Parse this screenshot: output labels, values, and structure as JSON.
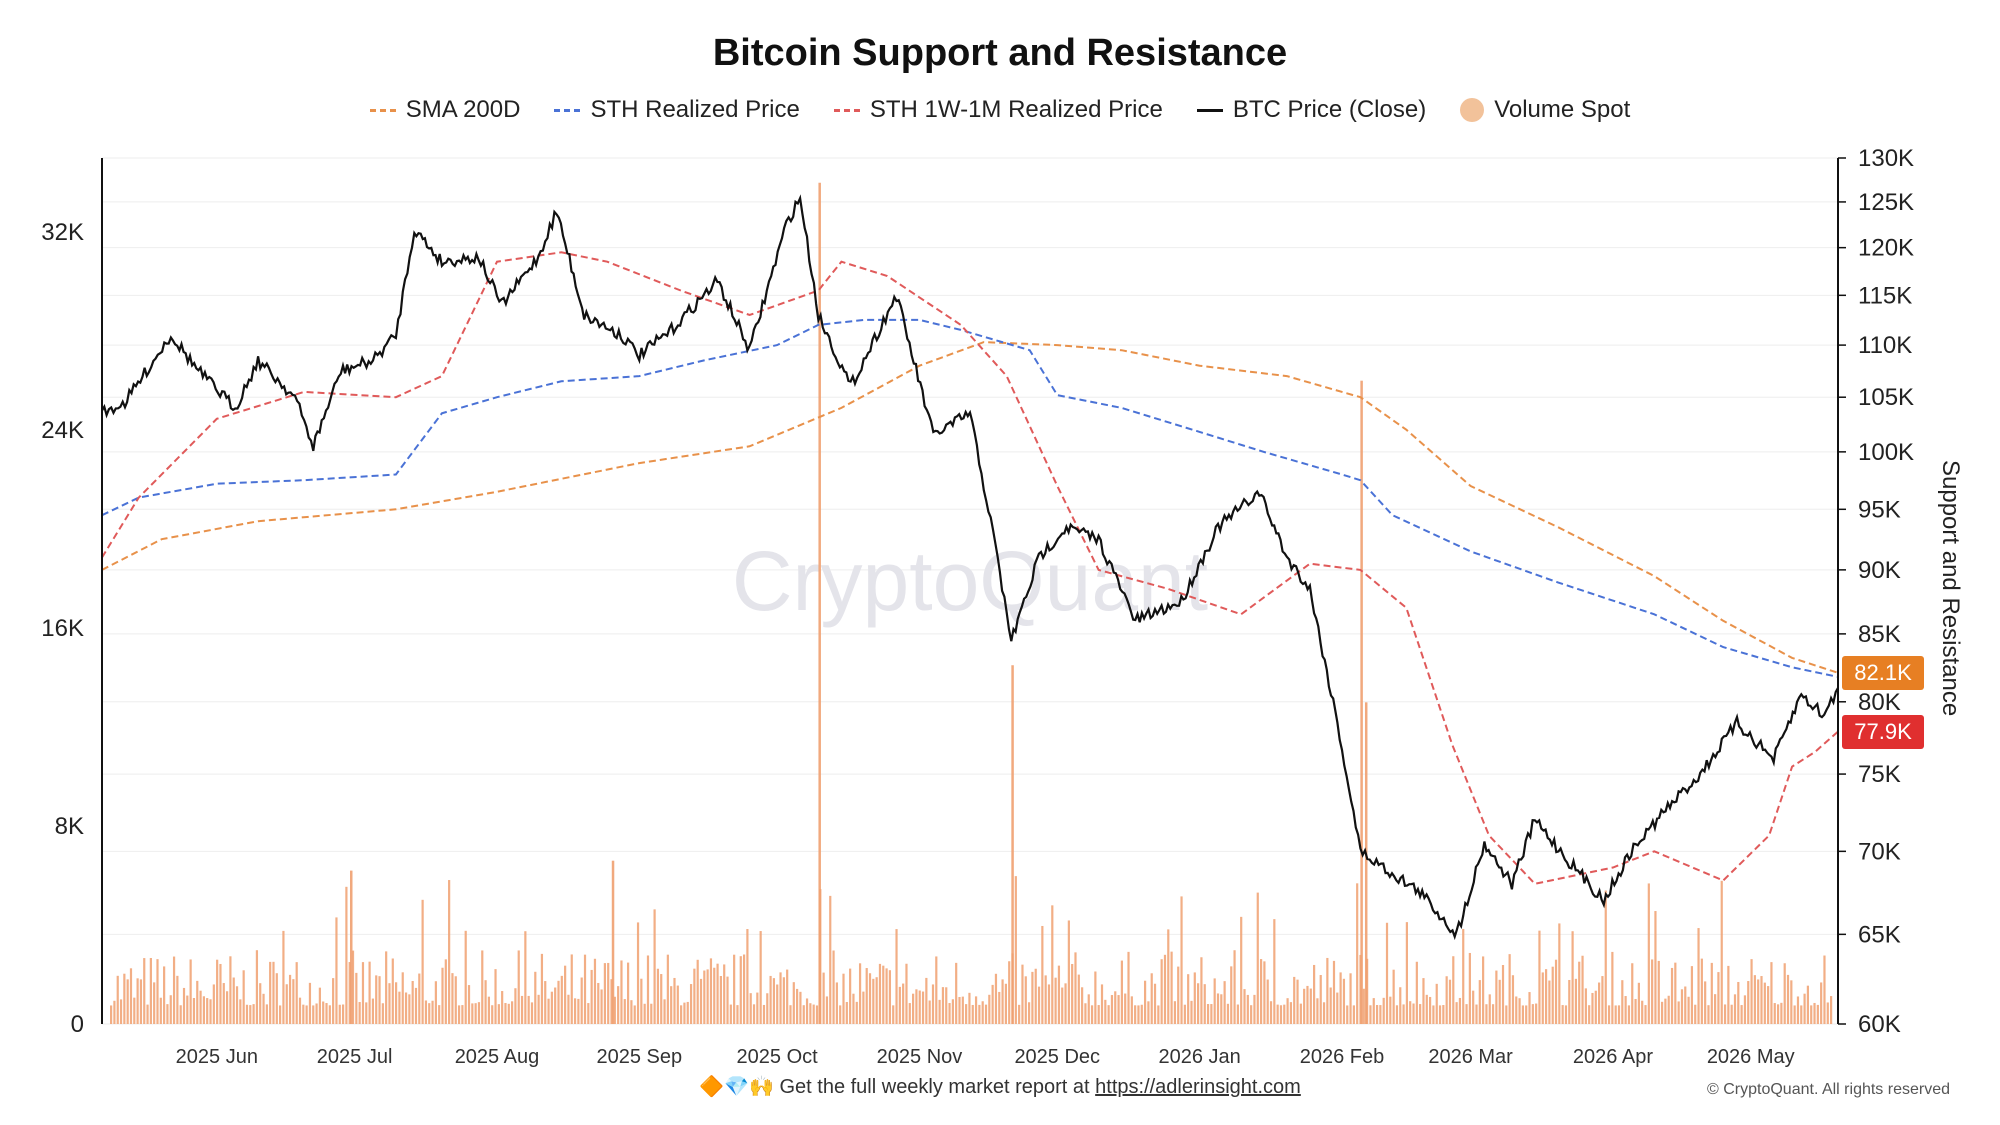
{
  "chart_data": {
    "type": "line",
    "title": "Bitcoin Support and Resistance",
    "left_axis": {
      "label": "",
      "range": [
        0,
        35000
      ],
      "ticks": [
        "0",
        "8K",
        "16K",
        "24K",
        "32K"
      ],
      "tick_values": [
        0,
        8000,
        16000,
        24000,
        32000
      ]
    },
    "right_axis": {
      "label": "Support and Resistance",
      "scale": "log",
      "range": [
        60000,
        130000
      ],
      "ticks": [
        "60K",
        "65K",
        "70K",
        "75K",
        "80K",
        "85K",
        "90K",
        "95K",
        "100K",
        "105K",
        "110K",
        "115K",
        "120K",
        "125K",
        "130K"
      ],
      "tick_values": [
        60000,
        65000,
        70000,
        75000,
        80000,
        85000,
        90000,
        95000,
        100000,
        105000,
        110000,
        115000,
        120000,
        125000,
        130000
      ]
    },
    "x_axis": {
      "range": [
        "2025-05-07",
        "2026-05-20"
      ],
      "ticks": [
        "2025 Jun",
        "2025 Jul",
        "2025 Aug",
        "2025 Sep",
        "2025 Oct",
        "2025 Nov",
        "2025 Dec",
        "2026 Jan",
        "2026 Feb",
        "2026 Mar",
        "2026 Apr",
        "2026 May"
      ],
      "tick_dates": [
        "2025-06-01",
        "2025-07-01",
        "2025-08-01",
        "2025-09-01",
        "2025-10-01",
        "2025-11-01",
        "2025-12-01",
        "2026-01-01",
        "2026-02-01",
        "2026-03-01",
        "2026-04-01",
        "2026-05-01"
      ]
    },
    "grid": true,
    "legend_position": "top-center",
    "series": [
      {
        "name": "SMA 200D",
        "axis": "right",
        "style": "dashed",
        "color": "#e8914a",
        "points": [
          [
            "2025-05-07",
            90000
          ],
          [
            "2025-05-20",
            92500
          ],
          [
            "2025-06-10",
            94000
          ],
          [
            "2025-07-10",
            95000
          ],
          [
            "2025-08-01",
            96500
          ],
          [
            "2025-09-01",
            99000
          ],
          [
            "2025-09-25",
            100500
          ],
          [
            "2025-10-15",
            104000
          ],
          [
            "2025-11-01",
            108000
          ],
          [
            "2025-11-15",
            110300
          ],
          [
            "2025-12-01",
            110000
          ],
          [
            "2025-12-15",
            109500
          ],
          [
            "2026-01-01",
            108000
          ],
          [
            "2026-01-20",
            107000
          ],
          [
            "2026-02-05",
            105000
          ],
          [
            "2026-02-15",
            102000
          ],
          [
            "2026-03-01",
            97000
          ],
          [
            "2026-03-20",
            93500
          ],
          [
            "2026-04-10",
            89500
          ],
          [
            "2026-04-25",
            86000
          ],
          [
            "2026-05-10",
            83200
          ],
          [
            "2026-05-20",
            82100
          ]
        ]
      },
      {
        "name": "STH Realized Price",
        "axis": "right",
        "style": "dashed",
        "color": "#4a72d6",
        "points": [
          [
            "2025-05-07",
            94500
          ],
          [
            "2025-05-15",
            96000
          ],
          [
            "2025-06-01",
            97200
          ],
          [
            "2025-06-20",
            97500
          ],
          [
            "2025-07-10",
            98000
          ],
          [
            "2025-07-20",
            103500
          ],
          [
            "2025-08-01",
            105000
          ],
          [
            "2025-08-15",
            106500
          ],
          [
            "2025-09-01",
            107000
          ],
          [
            "2025-09-15",
            108500
          ],
          [
            "2025-10-01",
            110000
          ],
          [
            "2025-10-10",
            112000
          ],
          [
            "2025-10-20",
            112500
          ],
          [
            "2025-11-01",
            112500
          ],
          [
            "2025-11-10",
            111500
          ],
          [
            "2025-11-25",
            109500
          ],
          [
            "2025-12-01",
            105200
          ],
          [
            "2025-12-15",
            104000
          ],
          [
            "2026-01-01",
            101800
          ],
          [
            "2026-01-15",
            100000
          ],
          [
            "2026-02-01",
            98000
          ],
          [
            "2026-02-05",
            97500
          ],
          [
            "2026-02-12",
            94500
          ],
          [
            "2026-03-01",
            91500
          ],
          [
            "2026-03-20",
            89000
          ],
          [
            "2026-04-10",
            86500
          ],
          [
            "2026-04-25",
            84000
          ],
          [
            "2026-05-10",
            82500
          ],
          [
            "2026-05-20",
            81800
          ]
        ]
      },
      {
        "name": "STH 1W-1M Realized Price",
        "axis": "right",
        "style": "dashed",
        "color": "#e05a5a",
        "points": [
          [
            "2025-05-07",
            91000
          ],
          [
            "2025-05-15",
            96000
          ],
          [
            "2025-06-01",
            103000
          ],
          [
            "2025-06-20",
            105500
          ],
          [
            "2025-07-10",
            105000
          ],
          [
            "2025-07-20",
            107000
          ],
          [
            "2025-08-01",
            118500
          ],
          [
            "2025-08-15",
            119500
          ],
          [
            "2025-08-25",
            118500
          ],
          [
            "2025-09-10",
            115500
          ],
          [
            "2025-09-25",
            113000
          ],
          [
            "2025-10-10",
            115500
          ],
          [
            "2025-10-15",
            118500
          ],
          [
            "2025-10-25",
            117000
          ],
          [
            "2025-11-10",
            112000
          ],
          [
            "2025-11-20",
            107000
          ],
          [
            "2025-12-01",
            97000
          ],
          [
            "2025-12-10",
            90000
          ],
          [
            "2025-12-25",
            88500
          ],
          [
            "2026-01-10",
            86500
          ],
          [
            "2026-01-25",
            90500
          ],
          [
            "2026-02-05",
            90000
          ],
          [
            "2026-02-15",
            87000
          ],
          [
            "2026-02-25",
            77000
          ],
          [
            "2026-03-05",
            71000
          ],
          [
            "2026-03-15",
            68000
          ],
          [
            "2026-04-01",
            69000
          ],
          [
            "2026-04-10",
            70000
          ],
          [
            "2026-04-25",
            68200
          ],
          [
            "2026-05-05",
            71000
          ],
          [
            "2026-05-10",
            75500
          ],
          [
            "2026-05-15",
            76500
          ],
          [
            "2026-05-20",
            77900
          ]
        ]
      },
      {
        "name": "BTC Price (Close)",
        "axis": "right",
        "style": "solid",
        "color": "#111111",
        "points": [
          [
            "2025-05-07",
            103500
          ],
          [
            "2025-05-12",
            104500
          ],
          [
            "2025-05-22",
            111000
          ],
          [
            "2025-05-28",
            107500
          ],
          [
            "2025-06-05",
            104000
          ],
          [
            "2025-06-10",
            108500
          ],
          [
            "2025-06-18",
            105000
          ],
          [
            "2025-06-22",
            100500
          ],
          [
            "2025-06-28",
            107500
          ],
          [
            "2025-07-05",
            108500
          ],
          [
            "2025-07-10",
            111000
          ],
          [
            "2025-07-14",
            122000
          ],
          [
            "2025-07-20",
            118500
          ],
          [
            "2025-07-28",
            119000
          ],
          [
            "2025-08-02",
            114000
          ],
          [
            "2025-08-10",
            119000
          ],
          [
            "2025-08-14",
            124000
          ],
          [
            "2025-08-20",
            113000
          ],
          [
            "2025-08-28",
            111000
          ],
          [
            "2025-09-01",
            109000
          ],
          [
            "2025-09-08",
            111500
          ],
          [
            "2025-09-18",
            116500
          ],
          [
            "2025-09-25",
            109500
          ],
          [
            "2025-10-03",
            122500
          ],
          [
            "2025-10-06",
            125500
          ],
          [
            "2025-10-10",
            113000
          ],
          [
            "2025-10-17",
            106000
          ],
          [
            "2025-10-27",
            115000
          ],
          [
            "2025-11-04",
            101500
          ],
          [
            "2025-11-12",
            103500
          ],
          [
            "2025-11-17",
            93000
          ],
          [
            "2025-11-21",
            84500
          ],
          [
            "2025-11-27",
            91000
          ],
          [
            "2025-12-03",
            93500
          ],
          [
            "2025-12-10",
            92500
          ],
          [
            "2025-12-18",
            86000
          ],
          [
            "2025-12-28",
            87500
          ],
          [
            "2026-01-05",
            93500
          ],
          [
            "2026-01-14",
            96500
          ],
          [
            "2026-01-20",
            91000
          ],
          [
            "2026-01-25",
            88500
          ],
          [
            "2026-01-31",
            78500
          ],
          [
            "2026-02-05",
            70000
          ],
          [
            "2026-02-10",
            69000
          ],
          [
            "2026-02-18",
            67500
          ],
          [
            "2026-02-26",
            65000
          ],
          [
            "2026-03-04",
            70500
          ],
          [
            "2026-03-10",
            68000
          ],
          [
            "2026-03-15",
            72000
          ],
          [
            "2026-03-22",
            69500
          ],
          [
            "2026-03-30",
            67000
          ],
          [
            "2026-04-05",
            70000
          ],
          [
            "2026-04-12",
            72500
          ],
          [
            "2026-04-20",
            75000
          ],
          [
            "2026-04-28",
            78500
          ],
          [
            "2026-05-06",
            76000
          ],
          [
            "2026-05-12",
            80500
          ],
          [
            "2026-05-17",
            79000
          ],
          [
            "2026-05-20",
            81000
          ]
        ]
      }
    ],
    "volume": {
      "name": "Volume Spot",
      "axis": "left",
      "color": "#f0a070",
      "baseline": 2500,
      "spikes": [
        [
          "2025-06-30",
          6200
        ],
        [
          "2025-08-26",
          6600
        ],
        [
          "2025-10-10",
          34000
        ],
        [
          "2025-11-21",
          14500
        ],
        [
          "2026-02-05",
          26000
        ],
        [
          "2026-02-06",
          13000
        ]
      ]
    },
    "last_values": [
      {
        "label": "82.1K",
        "value": 82100,
        "color": "#e77f23"
      },
      {
        "label": "77.9K",
        "value": 77900,
        "color": "#e02f2f"
      }
    ]
  },
  "watermark": "CryptoQuant",
  "footer": {
    "prefix_icons": "🔶💎🙌",
    "text": "Get the full weekly market report at ",
    "link": "https://adlerinsight.com"
  },
  "copyright": "© CryptoQuant. All rights reserved"
}
